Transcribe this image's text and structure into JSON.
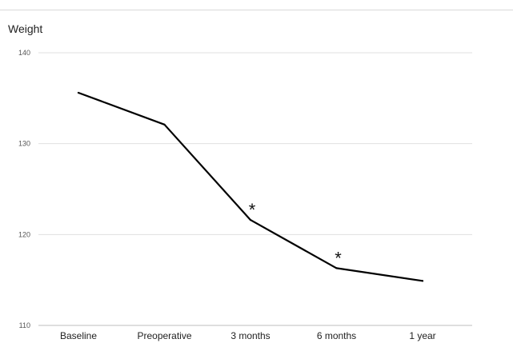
{
  "chart_data": {
    "type": "line",
    "title": "Weight",
    "xlabel": "",
    "ylabel": "",
    "categories": [
      "Baseline",
      "Preoperative",
      "3 months",
      "6 months",
      "1 year"
    ],
    "series": [
      {
        "values": [
          135.6,
          132.1,
          121.6,
          116.3,
          114.9
        ],
        "color": "#000000"
      }
    ],
    "annotations": [
      {
        "category": "3 months",
        "text": "*"
      },
      {
        "category": "6 months",
        "text": "*"
      }
    ],
    "ylim": [
      110,
      140
    ],
    "yticks": [
      110,
      120,
      130,
      140
    ],
    "grid": true,
    "legend": "none"
  }
}
